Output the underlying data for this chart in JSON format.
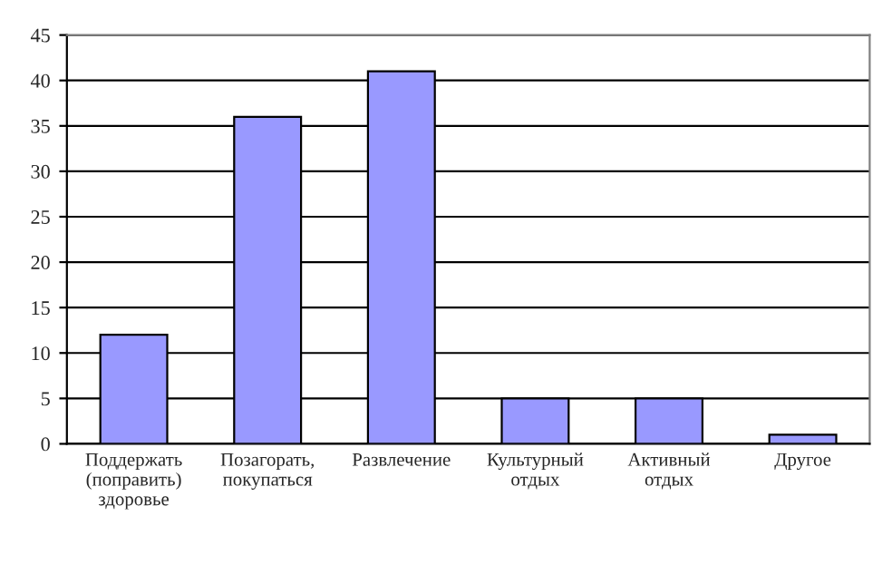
{
  "chart_data": {
    "type": "bar",
    "categories": [
      "Поддержать\n(поправить)\nздоровье",
      "Позагорать,\nпокупаться",
      "Развлечение",
      "Культурный\nотдых",
      "Активный\nотдых",
      "Другое"
    ],
    "values": [
      12,
      36,
      41,
      5,
      5,
      1
    ],
    "color": "#9999ff",
    "ylim": [
      0,
      45
    ],
    "yticks": [
      0,
      5,
      10,
      15,
      20,
      25,
      30,
      35,
      40,
      45
    ],
    "grid": "y",
    "legend": false
  }
}
